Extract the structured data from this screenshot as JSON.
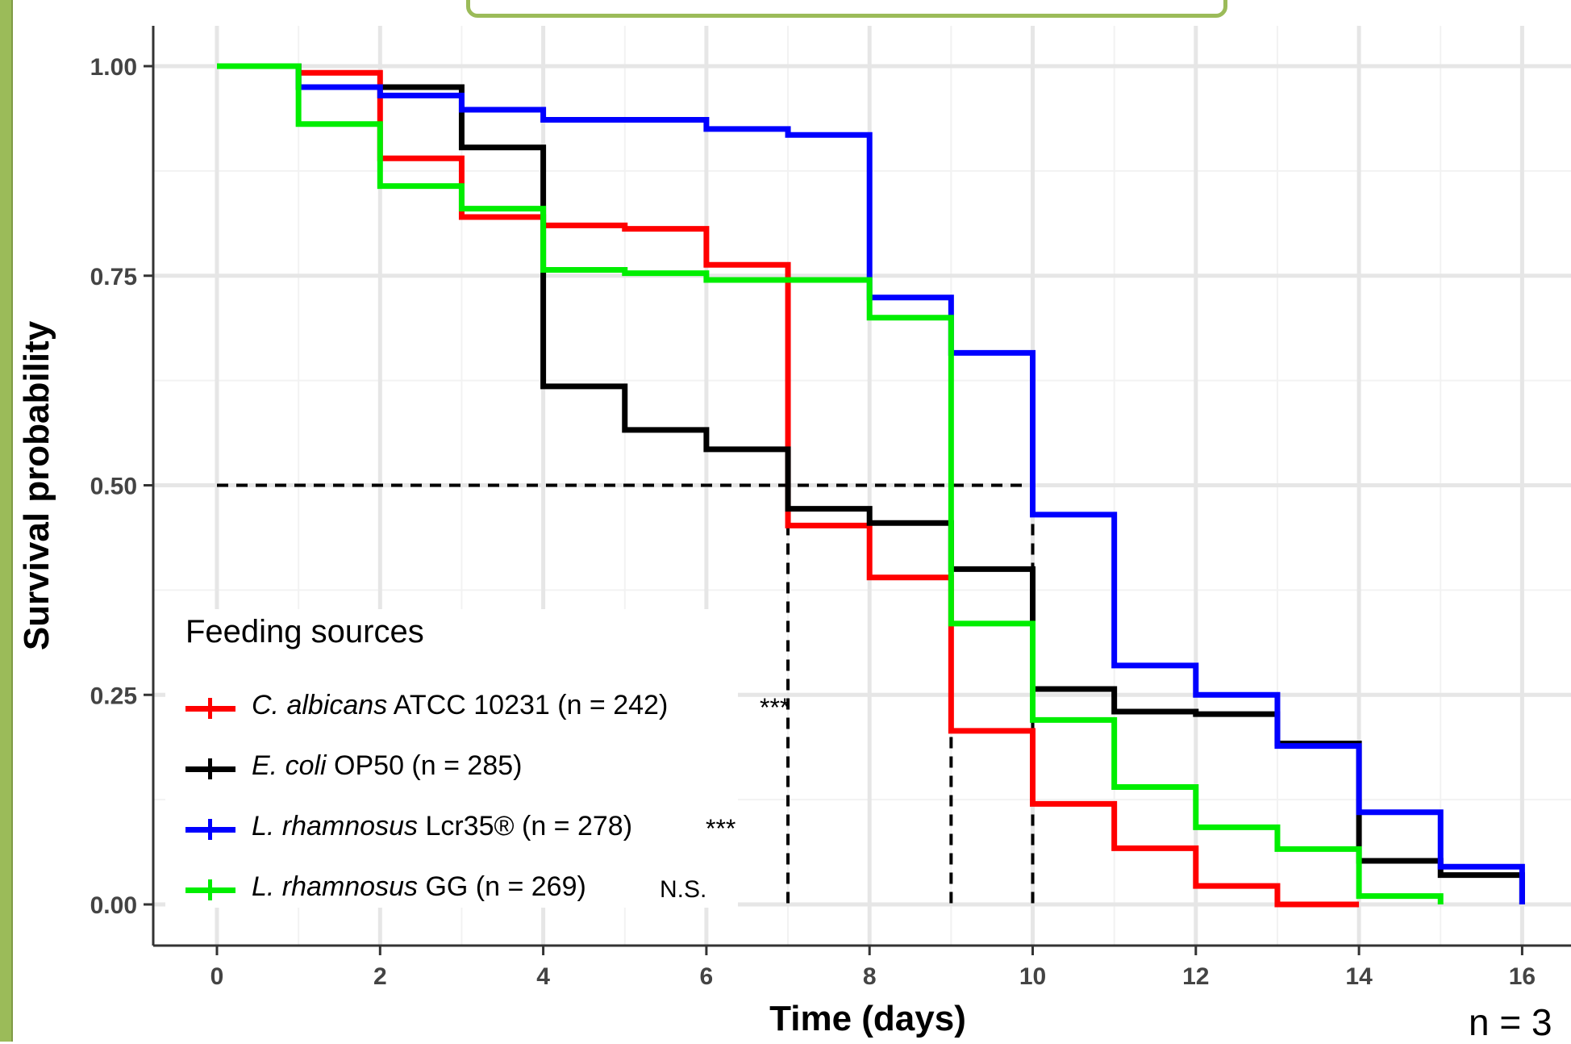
{
  "chart_data": {
    "type": "line",
    "xlabel": "Time (days)",
    "ylabel": "Survival probability",
    "xlim": [
      -0.8,
      16.8
    ],
    "ylim": [
      -0.05,
      1.05
    ],
    "x_ticks": [
      0,
      2,
      4,
      6,
      8,
      10,
      12,
      14,
      16
    ],
    "x_tick_labels": [
      "0",
      "2",
      "4",
      "6",
      "8",
      "10",
      "12",
      "14",
      "16"
    ],
    "y_ticks": [
      0,
      0.25,
      0.5,
      0.75,
      1.0
    ],
    "y_tick_labels": [
      "0.00",
      "0.25",
      "0.50",
      "0.75",
      "1.00"
    ],
    "grid": true,
    "legend_placement": "bottom-left",
    "legend_title": "Feeding sources",
    "median_line": {
      "y": 0.5,
      "x_start": 0,
      "x_end": 10,
      "drops": [
        7,
        9,
        10
      ]
    },
    "series": [
      {
        "species": "C. albicans",
        "rest": " ATCC 10231 (n = 242)",
        "significance": "***",
        "color": "#ff0000",
        "x": [
          0,
          1,
          2,
          3,
          4,
          5,
          6,
          7,
          8,
          9,
          10,
          11,
          12,
          13,
          14
        ],
        "y": [
          1.0,
          0.992,
          0.89,
          0.82,
          0.81,
          0.806,
          0.763,
          0.452,
          0.39,
          0.207,
          0.12,
          0.067,
          0.022,
          0.0,
          0.0
        ]
      },
      {
        "species": "E. coli",
        "rest": " OP50 (n = 285)",
        "significance": "",
        "color": "#000000",
        "x": [
          0,
          1,
          2,
          3,
          4,
          5,
          6,
          7,
          8,
          9,
          10,
          11,
          12,
          13,
          14,
          15,
          16
        ],
        "y": [
          1.0,
          0.975,
          0.975,
          0.903,
          0.618,
          0.566,
          0.543,
          0.472,
          0.455,
          0.4,
          0.257,
          0.23,
          0.227,
          0.192,
          0.052,
          0.035,
          0.0
        ]
      },
      {
        "species": "L. rhamnosus",
        "rest": " Lcr35® (n = 278)",
        "significance": "***",
        "color": "#0000ff",
        "x": [
          0,
          1,
          2,
          3,
          4,
          5,
          6,
          7,
          8,
          9,
          10,
          11,
          12,
          13,
          14,
          15,
          16
        ],
        "y": [
          1.0,
          0.975,
          0.965,
          0.948,
          0.936,
          0.936,
          0.925,
          0.918,
          0.724,
          0.658,
          0.465,
          0.285,
          0.25,
          0.189,
          0.11,
          0.045,
          0.0
        ]
      },
      {
        "species": "L. rhamnosus",
        "rest": " GG (n = 269)",
        "significance": "N.S.",
        "color": "#00ee00",
        "x": [
          0,
          1,
          2,
          3,
          4,
          5,
          6,
          7,
          8,
          9,
          10,
          11,
          12,
          13,
          14,
          15
        ],
        "y": [
          1.0,
          0.931,
          0.857,
          0.83,
          0.757,
          0.753,
          0.745,
          0.745,
          0.7,
          0.335,
          0.22,
          0.14,
          0.092,
          0.066,
          0.01,
          0.0
        ]
      }
    ]
  },
  "annotation": {
    "n_note": "n = 3"
  }
}
